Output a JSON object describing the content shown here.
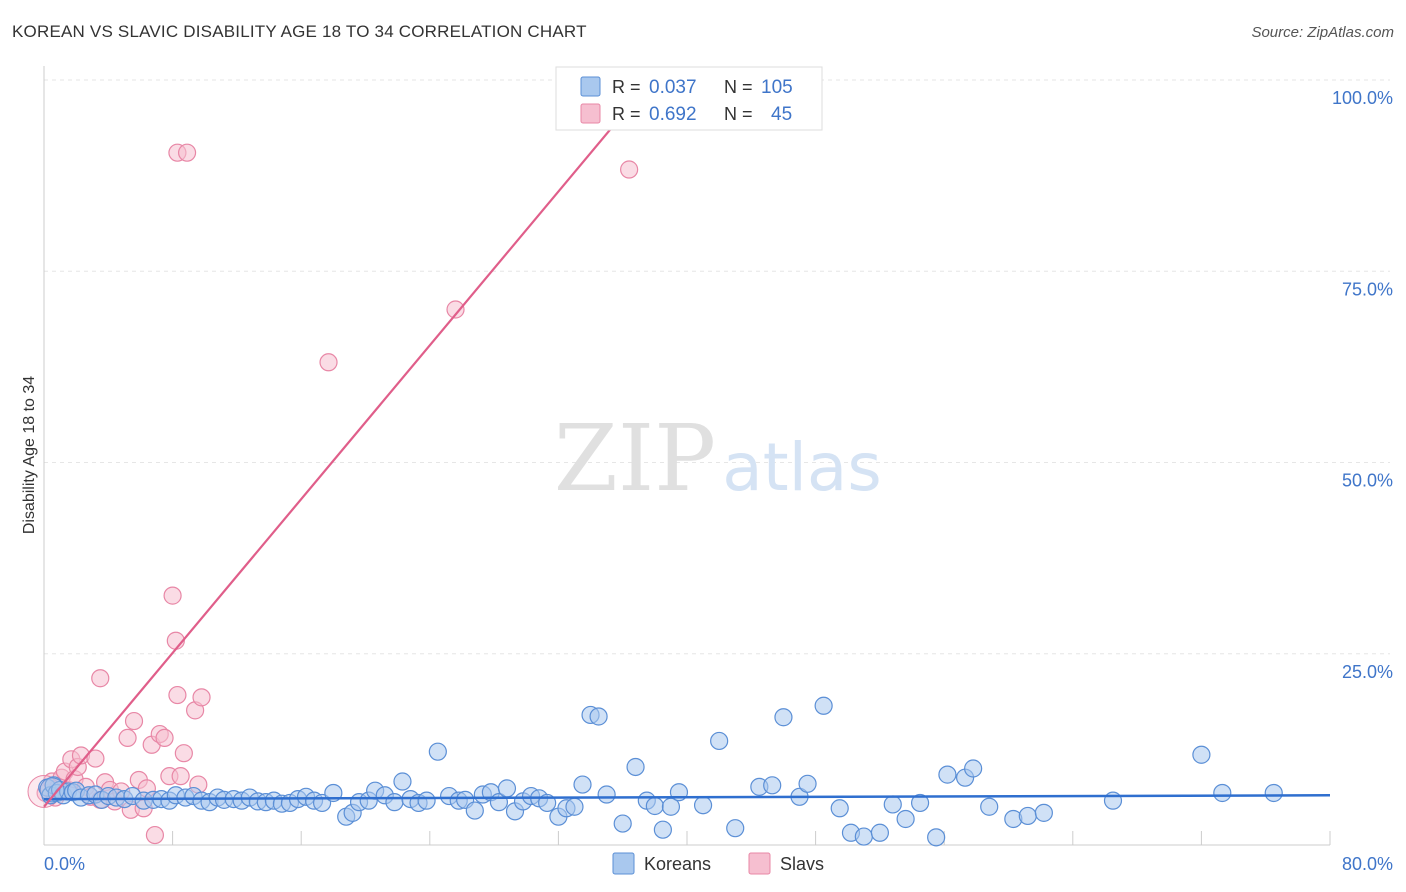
{
  "header": {
    "title": "KOREAN VS SLAVIC DISABILITY AGE 18 TO 34 CORRELATION CHART",
    "source": "Source: ZipAtlas.com"
  },
  "watermark": {
    "zip": "ZIP",
    "atlas": "atlas"
  },
  "colors": {
    "korean_fill": "#a9c8ee",
    "korean_stroke": "#5b8fd6",
    "korean_line": "#2f6fcf",
    "slav_fill": "#f6bfd0",
    "slav_stroke": "#e887a6",
    "slav_line": "#e05e8a",
    "tick_label": "#3f75c9",
    "grid": "#e6e6e6"
  },
  "legend_top": {
    "rows": [
      {
        "r_label": "R =",
        "r_value": "0.037",
        "n_label": "N =",
        "n_value": "105"
      },
      {
        "r_label": "R =",
        "r_value": "0.692",
        "n_label": "N =",
        "n_value": "45"
      }
    ]
  },
  "chart_data": {
    "type": "scatter",
    "title": "KOREAN VS SLAVIC DISABILITY AGE 18 TO 34 CORRELATION CHART",
    "xlabel": "",
    "ylabel": "Disability Age 18 to 34",
    "xlim": [
      0,
      80
    ],
    "ylim": [
      0,
      100
    ],
    "x_tick_labels": [
      "0.0%",
      "80.0%"
    ],
    "y_ticks": [
      25,
      50,
      75,
      100
    ],
    "y_tick_labels": [
      "25.0%",
      "50.0%",
      "75.0%",
      "100.0%"
    ],
    "grid": true,
    "legend_position": "bottom-center",
    "series": [
      {
        "name": "Koreans",
        "r": 0.037,
        "n": 105,
        "trend": {
          "x0": 0,
          "y0": 6.0,
          "x1": 80,
          "y1": 6.5
        },
        "points": [
          [
            0.2,
            7.5
          ],
          [
            0.4,
            6.5
          ],
          [
            0.6,
            7.8
          ],
          [
            0.8,
            6.8
          ],
          [
            1.0,
            7.2
          ],
          [
            1.2,
            6.5
          ],
          [
            1.5,
            7.0
          ],
          [
            1.8,
            6.9
          ],
          [
            2.0,
            7.1
          ],
          [
            2.3,
            6.2
          ],
          [
            2.8,
            6.5
          ],
          [
            3.2,
            6.6
          ],
          [
            3.6,
            5.9
          ],
          [
            4.0,
            6.4
          ],
          [
            4.5,
            6.2
          ],
          [
            5.0,
            6.0
          ],
          [
            5.5,
            6.4
          ],
          [
            6.2,
            5.8
          ],
          [
            6.8,
            5.9
          ],
          [
            7.3,
            6.0
          ],
          [
            7.8,
            5.8
          ],
          [
            8.2,
            6.5
          ],
          [
            8.8,
            6.2
          ],
          [
            9.3,
            6.4
          ],
          [
            9.8,
            5.8
          ],
          [
            10.3,
            5.6
          ],
          [
            10.8,
            6.2
          ],
          [
            11.2,
            5.9
          ],
          [
            11.8,
            6.0
          ],
          [
            12.3,
            5.8
          ],
          [
            12.8,
            6.2
          ],
          [
            13.3,
            5.7
          ],
          [
            13.8,
            5.6
          ],
          [
            14.3,
            5.8
          ],
          [
            14.8,
            5.4
          ],
          [
            15.3,
            5.5
          ],
          [
            15.8,
            6.0
          ],
          [
            16.3,
            6.3
          ],
          [
            16.8,
            5.8
          ],
          [
            17.3,
            5.5
          ],
          [
            18.0,
            6.8
          ],
          [
            18.8,
            3.7
          ],
          [
            19.2,
            4.2
          ],
          [
            19.6,
            5.6
          ],
          [
            20.2,
            5.8
          ],
          [
            20.6,
            7.1
          ],
          [
            21.2,
            6.5
          ],
          [
            21.8,
            5.6
          ],
          [
            22.3,
            8.3
          ],
          [
            22.8,
            6.0
          ],
          [
            23.3,
            5.5
          ],
          [
            23.8,
            5.8
          ],
          [
            24.5,
            12.2
          ],
          [
            25.2,
            6.4
          ],
          [
            25.8,
            5.8
          ],
          [
            26.2,
            5.9
          ],
          [
            26.8,
            4.5
          ],
          [
            27.3,
            6.6
          ],
          [
            27.8,
            6.9
          ],
          [
            28.3,
            5.6
          ],
          [
            28.8,
            7.4
          ],
          [
            29.3,
            4.4
          ],
          [
            29.8,
            5.7
          ],
          [
            30.3,
            6.4
          ],
          [
            30.8,
            6.1
          ],
          [
            31.3,
            5.5
          ],
          [
            32.0,
            3.7
          ],
          [
            32.5,
            4.8
          ],
          [
            33.0,
            5.0
          ],
          [
            33.5,
            7.9
          ],
          [
            34.0,
            17.0
          ],
          [
            34.5,
            16.8
          ],
          [
            35.0,
            6.6
          ],
          [
            36.0,
            2.8
          ],
          [
            36.8,
            10.2
          ],
          [
            37.5,
            5.8
          ],
          [
            38.0,
            5.1
          ],
          [
            38.5,
            2.0
          ],
          [
            39.0,
            5.0
          ],
          [
            39.5,
            6.9
          ],
          [
            41.0,
            5.2
          ],
          [
            42.0,
            13.6
          ],
          [
            43.0,
            2.2
          ],
          [
            44.5,
            7.6
          ],
          [
            45.3,
            7.8
          ],
          [
            46.0,
            16.7
          ],
          [
            47.0,
            6.3
          ],
          [
            47.5,
            8.0
          ],
          [
            48.5,
            18.2
          ],
          [
            49.5,
            4.8
          ],
          [
            50.2,
            1.6
          ],
          [
            51.0,
            1.1
          ],
          [
            52.0,
            1.6
          ],
          [
            52.8,
            5.3
          ],
          [
            53.6,
            3.4
          ],
          [
            54.5,
            5.5
          ],
          [
            55.5,
            1.0
          ],
          [
            56.2,
            9.2
          ],
          [
            57.3,
            8.8
          ],
          [
            57.8,
            10.0
          ],
          [
            58.8,
            5.0
          ],
          [
            60.3,
            3.4
          ],
          [
            61.2,
            3.8
          ],
          [
            62.2,
            4.2
          ],
          [
            66.5,
            5.8
          ],
          [
            72.0,
            11.8
          ],
          [
            73.3,
            6.8
          ],
          [
            76.5,
            6.8
          ]
        ]
      },
      {
        "name": "Slavs",
        "r": 0.692,
        "n": 45,
        "trend": {
          "x0": 0,
          "y0": 5.0,
          "x1": 37.8,
          "y1": 100
        },
        "points": [
          [
            0.1,
            6.8
          ],
          [
            0.3,
            7.4
          ],
          [
            0.5,
            8.3
          ],
          [
            0.7,
            6.2
          ],
          [
            0.9,
            7.6
          ],
          [
            1.1,
            8.8
          ],
          [
            1.3,
            9.6
          ],
          [
            1.5,
            7.2
          ],
          [
            1.7,
            11.2
          ],
          [
            1.9,
            8.6
          ],
          [
            2.1,
            10.2
          ],
          [
            2.3,
            11.7
          ],
          [
            2.6,
            7.6
          ],
          [
            2.9,
            6.3
          ],
          [
            3.2,
            11.3
          ],
          [
            3.5,
            5.9
          ],
          [
            3.8,
            8.2
          ],
          [
            4.1,
            7.2
          ],
          [
            4.4,
            5.7
          ],
          [
            4.8,
            7.0
          ],
          [
            5.2,
            14.0
          ],
          [
            5.4,
            4.6
          ],
          [
            5.6,
            16.2
          ],
          [
            5.9,
            8.5
          ],
          [
            6.2,
            4.8
          ],
          [
            6.4,
            7.4
          ],
          [
            6.7,
            13.1
          ],
          [
            6.9,
            1.3
          ],
          [
            7.2,
            14.5
          ],
          [
            7.5,
            14.0
          ],
          [
            7.8,
            9.0
          ],
          [
            8.0,
            32.6
          ],
          [
            8.2,
            26.7
          ],
          [
            8.3,
            19.6
          ],
          [
            8.5,
            9.0
          ],
          [
            8.7,
            12.0
          ],
          [
            9.4,
            17.6
          ],
          [
            9.6,
            7.9
          ],
          [
            9.8,
            19.3
          ],
          [
            3.5,
            21.8
          ],
          [
            8.3,
            90.5
          ],
          [
            8.9,
            90.5
          ],
          [
            17.7,
            63.1
          ],
          [
            25.6,
            70.0
          ],
          [
            36.4,
            88.3
          ]
        ]
      }
    ]
  },
  "legend_bottom": {
    "items": [
      {
        "label": "Koreans"
      },
      {
        "label": "Slavs"
      }
    ]
  }
}
